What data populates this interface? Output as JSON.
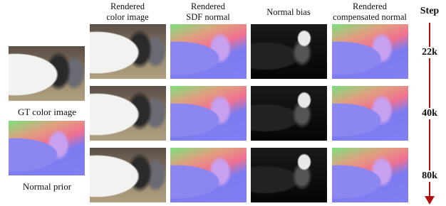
{
  "left_column": {
    "gt_label": "GT color image",
    "prior_label": "Normal prior"
  },
  "columns": [
    {
      "lines": [
        "Rendered",
        "color image"
      ]
    },
    {
      "lines": [
        "Rendered",
        "SDF normal"
      ]
    },
    {
      "lines": [
        "Normal bias"
      ]
    },
    {
      "lines": [
        "Rendered",
        "compensated normal"
      ]
    }
  ],
  "step_column": {
    "title": "Step",
    "steps": [
      "22k",
      "40k",
      "80k"
    ]
  }
}
